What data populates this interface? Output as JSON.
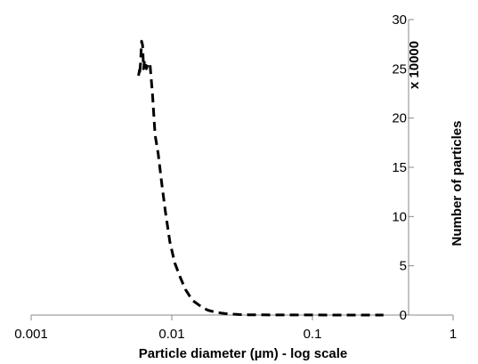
{
  "chart_data": {
    "type": "line",
    "title": "",
    "xlabel": "Particle diameter (µm) - log scale",
    "ylabel": "Number of particles",
    "y_multiplier_label": "x 10000",
    "x_scale": "log",
    "xlim": [
      0.001,
      1
    ],
    "ylim": [
      0,
      30
    ],
    "x_ticks": [
      0.001,
      0.01,
      0.1,
      1
    ],
    "x_tick_labels": [
      "0.001",
      "0.01",
      "0.1",
      "1"
    ],
    "y_ticks": [
      0,
      5,
      10,
      15,
      20,
      25,
      30
    ],
    "y_tick_labels": [
      "0",
      "5",
      "10",
      "15",
      "20",
      "25",
      "30"
    ],
    "y_axis_position": "right",
    "grid": false,
    "legend": "none",
    "series": [
      {
        "line_style": "dashed",
        "color": "#000000",
        "x": [
          0.0058,
          0.0059,
          0.0059,
          0.006,
          0.0061,
          0.0062,
          0.0063,
          0.0064,
          0.0066,
          0.0068,
          0.007,
          0.0073,
          0.0076,
          0.008,
          0.0085,
          0.009,
          0.0097,
          0.0105,
          0.0115,
          0.0125,
          0.014,
          0.016,
          0.018,
          0.021,
          0.025,
          0.03,
          0.035,
          0.045,
          0.06,
          0.1,
          0.15,
          0.2,
          0.32
        ],
        "y": [
          24.3,
          24.9,
          24.4,
          25.6,
          27.8,
          27.4,
          25.0,
          25.9,
          25.0,
          25.6,
          25.5,
          22.3,
          18.3,
          16.4,
          13.3,
          10.5,
          7.4,
          5.3,
          3.8,
          2.6,
          1.5,
          0.9,
          0.5,
          0.25,
          0.12,
          0.05,
          0.03,
          0.02,
          0.01,
          0.01,
          0.0,
          0.0,
          0.0
        ]
      }
    ]
  }
}
